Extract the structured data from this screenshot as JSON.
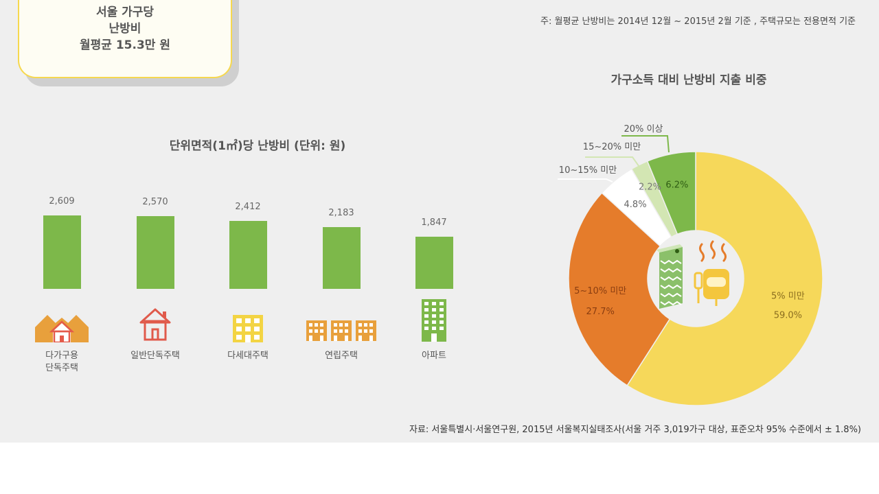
{
  "callout": {
    "line1": "서울 가구당",
    "line2": "난방비",
    "line3": "월평균 15.3만 원"
  },
  "note": "주: 월평균 난방비는 2014년 12월 ~ 2015년 2월 기준 , 주택규모는 전용면적 기준",
  "source": "자료: 서울특별시·서울연구원, 2015년 서울복지실태조사(서울 거주 3,019가구 대상, 표준오차 95% 수준에서 ± 1.8%)",
  "chart_data": [
    {
      "type": "bar",
      "title": "단위면적(1㎡)당 난방비 (단위: 원)",
      "categories": [
        "다가구용\n단독주택",
        "일반단독주택",
        "다세대주택",
        "연립주택",
        "아파트"
      ],
      "category_lines": [
        [
          "다가구용",
          "단독주택"
        ],
        [
          "일반단독주택"
        ],
        [
          "다세대주택"
        ],
        [
          "연립주택"
        ],
        [
          "아파트"
        ]
      ],
      "values": [
        2609,
        2570,
        2412,
        2183,
        1847
      ],
      "value_labels": [
        "2,609",
        "2,570",
        "2,412",
        "2,183",
        "1,847"
      ],
      "ylim": [
        0,
        3000
      ],
      "icons": [
        "multi-family-house-icon",
        "house-icon",
        "multiplex-building-icon",
        "row-house-icon",
        "apartment-icon"
      ],
      "bar_color": "#7db84a"
    },
    {
      "type": "pie",
      "subtype": "donut",
      "title": "가구소득 대비 난방비 지출 비중",
      "slices": [
        {
          "label": "5% 미만",
          "value": 59.0,
          "value_label": "59.0%",
          "color": "#f6d85a"
        },
        {
          "label": "5~10% 미만",
          "value": 27.7,
          "value_label": "27.7%",
          "color": "#e57c2b"
        },
        {
          "label": "10~15% 미만",
          "value": 4.8,
          "value_label": "4.8%",
          "color": "#ffffff"
        },
        {
          "label": "15~20% 미만",
          "value": 2.2,
          "value_label": "2.2%",
          "color": "#d3e6b3"
        },
        {
          "label": "20% 이상",
          "value": 6.2,
          "value_label": "6.2%",
          "color": "#7db84a"
        }
      ],
      "center_icons": [
        "radiator-icon",
        "heater-icon"
      ]
    }
  ]
}
